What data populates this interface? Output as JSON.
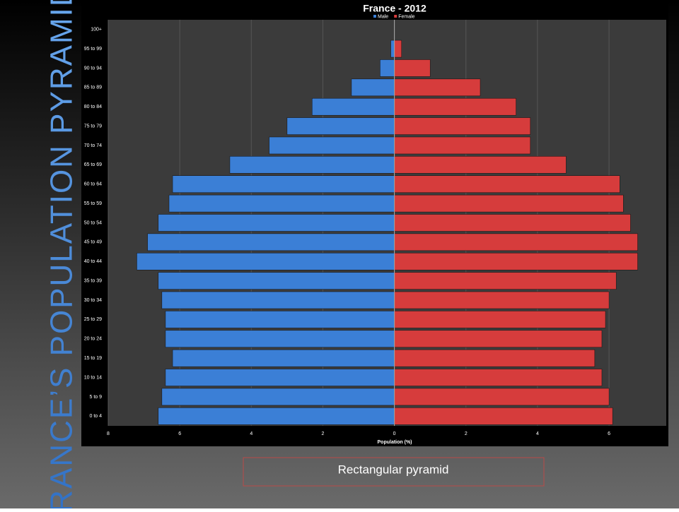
{
  "slide_title": "FRANCE’S POPULATION PYRAMID",
  "caption": "Rectangular pyramid",
  "chart_data": {
    "type": "pyramid",
    "title": "France - 2012",
    "xlabel": "Population (%)",
    "categories": [
      "100+",
      "95 to 99",
      "90 to 94",
      "85 to 89",
      "80 to 84",
      "75 to 79",
      "70 to 74",
      "65 to 69",
      "60 to 64",
      "55 to 59",
      "50 to 54",
      "45 to 49",
      "40 to 44",
      "35 to 39",
      "30 to 34",
      "25 to 29",
      "20 to 24",
      "15 to 19",
      "10 to 14",
      "5 to 9",
      "0 to 4"
    ],
    "series": [
      {
        "name": "Male",
        "color": "#3b7fd6",
        "values": [
          0,
          0.1,
          0.4,
          1.2,
          2.3,
          3.0,
          3.5,
          4.6,
          6.2,
          6.3,
          6.6,
          6.9,
          7.2,
          6.6,
          6.5,
          6.4,
          6.4,
          6.2,
          6.4,
          6.5,
          6.6
        ]
      },
      {
        "name": "Female",
        "color": "#d63c3c",
        "values": [
          0,
          0.2,
          1.0,
          2.4,
          3.4,
          3.8,
          3.8,
          4.8,
          6.3,
          6.4,
          6.6,
          6.8,
          6.8,
          6.2,
          6.0,
          5.9,
          5.8,
          5.6,
          5.8,
          6.0,
          6.1
        ]
      }
    ],
    "xlim": [
      -8,
      7.6
    ],
    "xticks": [
      {
        "value": -8,
        "label": "8"
      },
      {
        "value": -6,
        "label": "6"
      },
      {
        "value": -4,
        "label": "4"
      },
      {
        "value": -2,
        "label": "2"
      },
      0,
      2,
      4,
      6
    ],
    "grid": true
  }
}
